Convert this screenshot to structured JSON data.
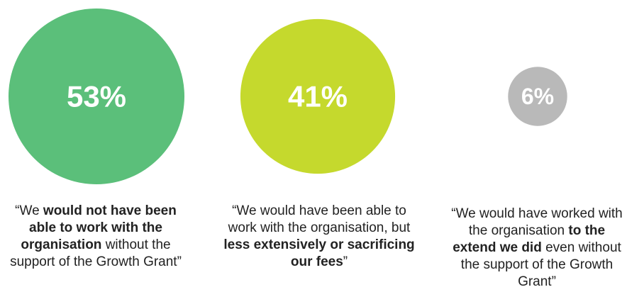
{
  "chart_data": {
    "type": "bubble",
    "categories": [
      "We would not have been able to work with the organisation without the support of the Growth Grant",
      "We would have been able to work with the organisation, but less extensively or sacrificing our fees",
      "We would have worked with the organisation to the extend we did even without the support of the Growth Grant"
    ],
    "values": [
      53,
      41,
      6
    ],
    "value_labels": [
      "53%",
      "41%",
      "6%"
    ],
    "colors": [
      "#5bbf7a",
      "#c5d92d",
      "#b9b9b9"
    ]
  },
  "captions": [
    {
      "parts": [
        {
          "text": "“We ",
          "bold": false
        },
        {
          "text": "would not have been able to work with the organisation",
          "bold": true
        },
        {
          "text": " without the support of the Growth Grant”",
          "bold": false
        }
      ]
    },
    {
      "parts": [
        {
          "text": "“We would have been able to work with the organisation, but ",
          "bold": false
        },
        {
          "text": "less extensively or sacrificing our fees",
          "bold": true
        },
        {
          "text": "”",
          "bold": false
        }
      ]
    },
    {
      "parts": [
        {
          "text": "“We would have worked with the organisation ",
          "bold": false
        },
        {
          "text": "to the extend we did",
          "bold": true
        },
        {
          "text": " even without the support of the Growth Grant”",
          "bold": false
        }
      ]
    }
  ]
}
